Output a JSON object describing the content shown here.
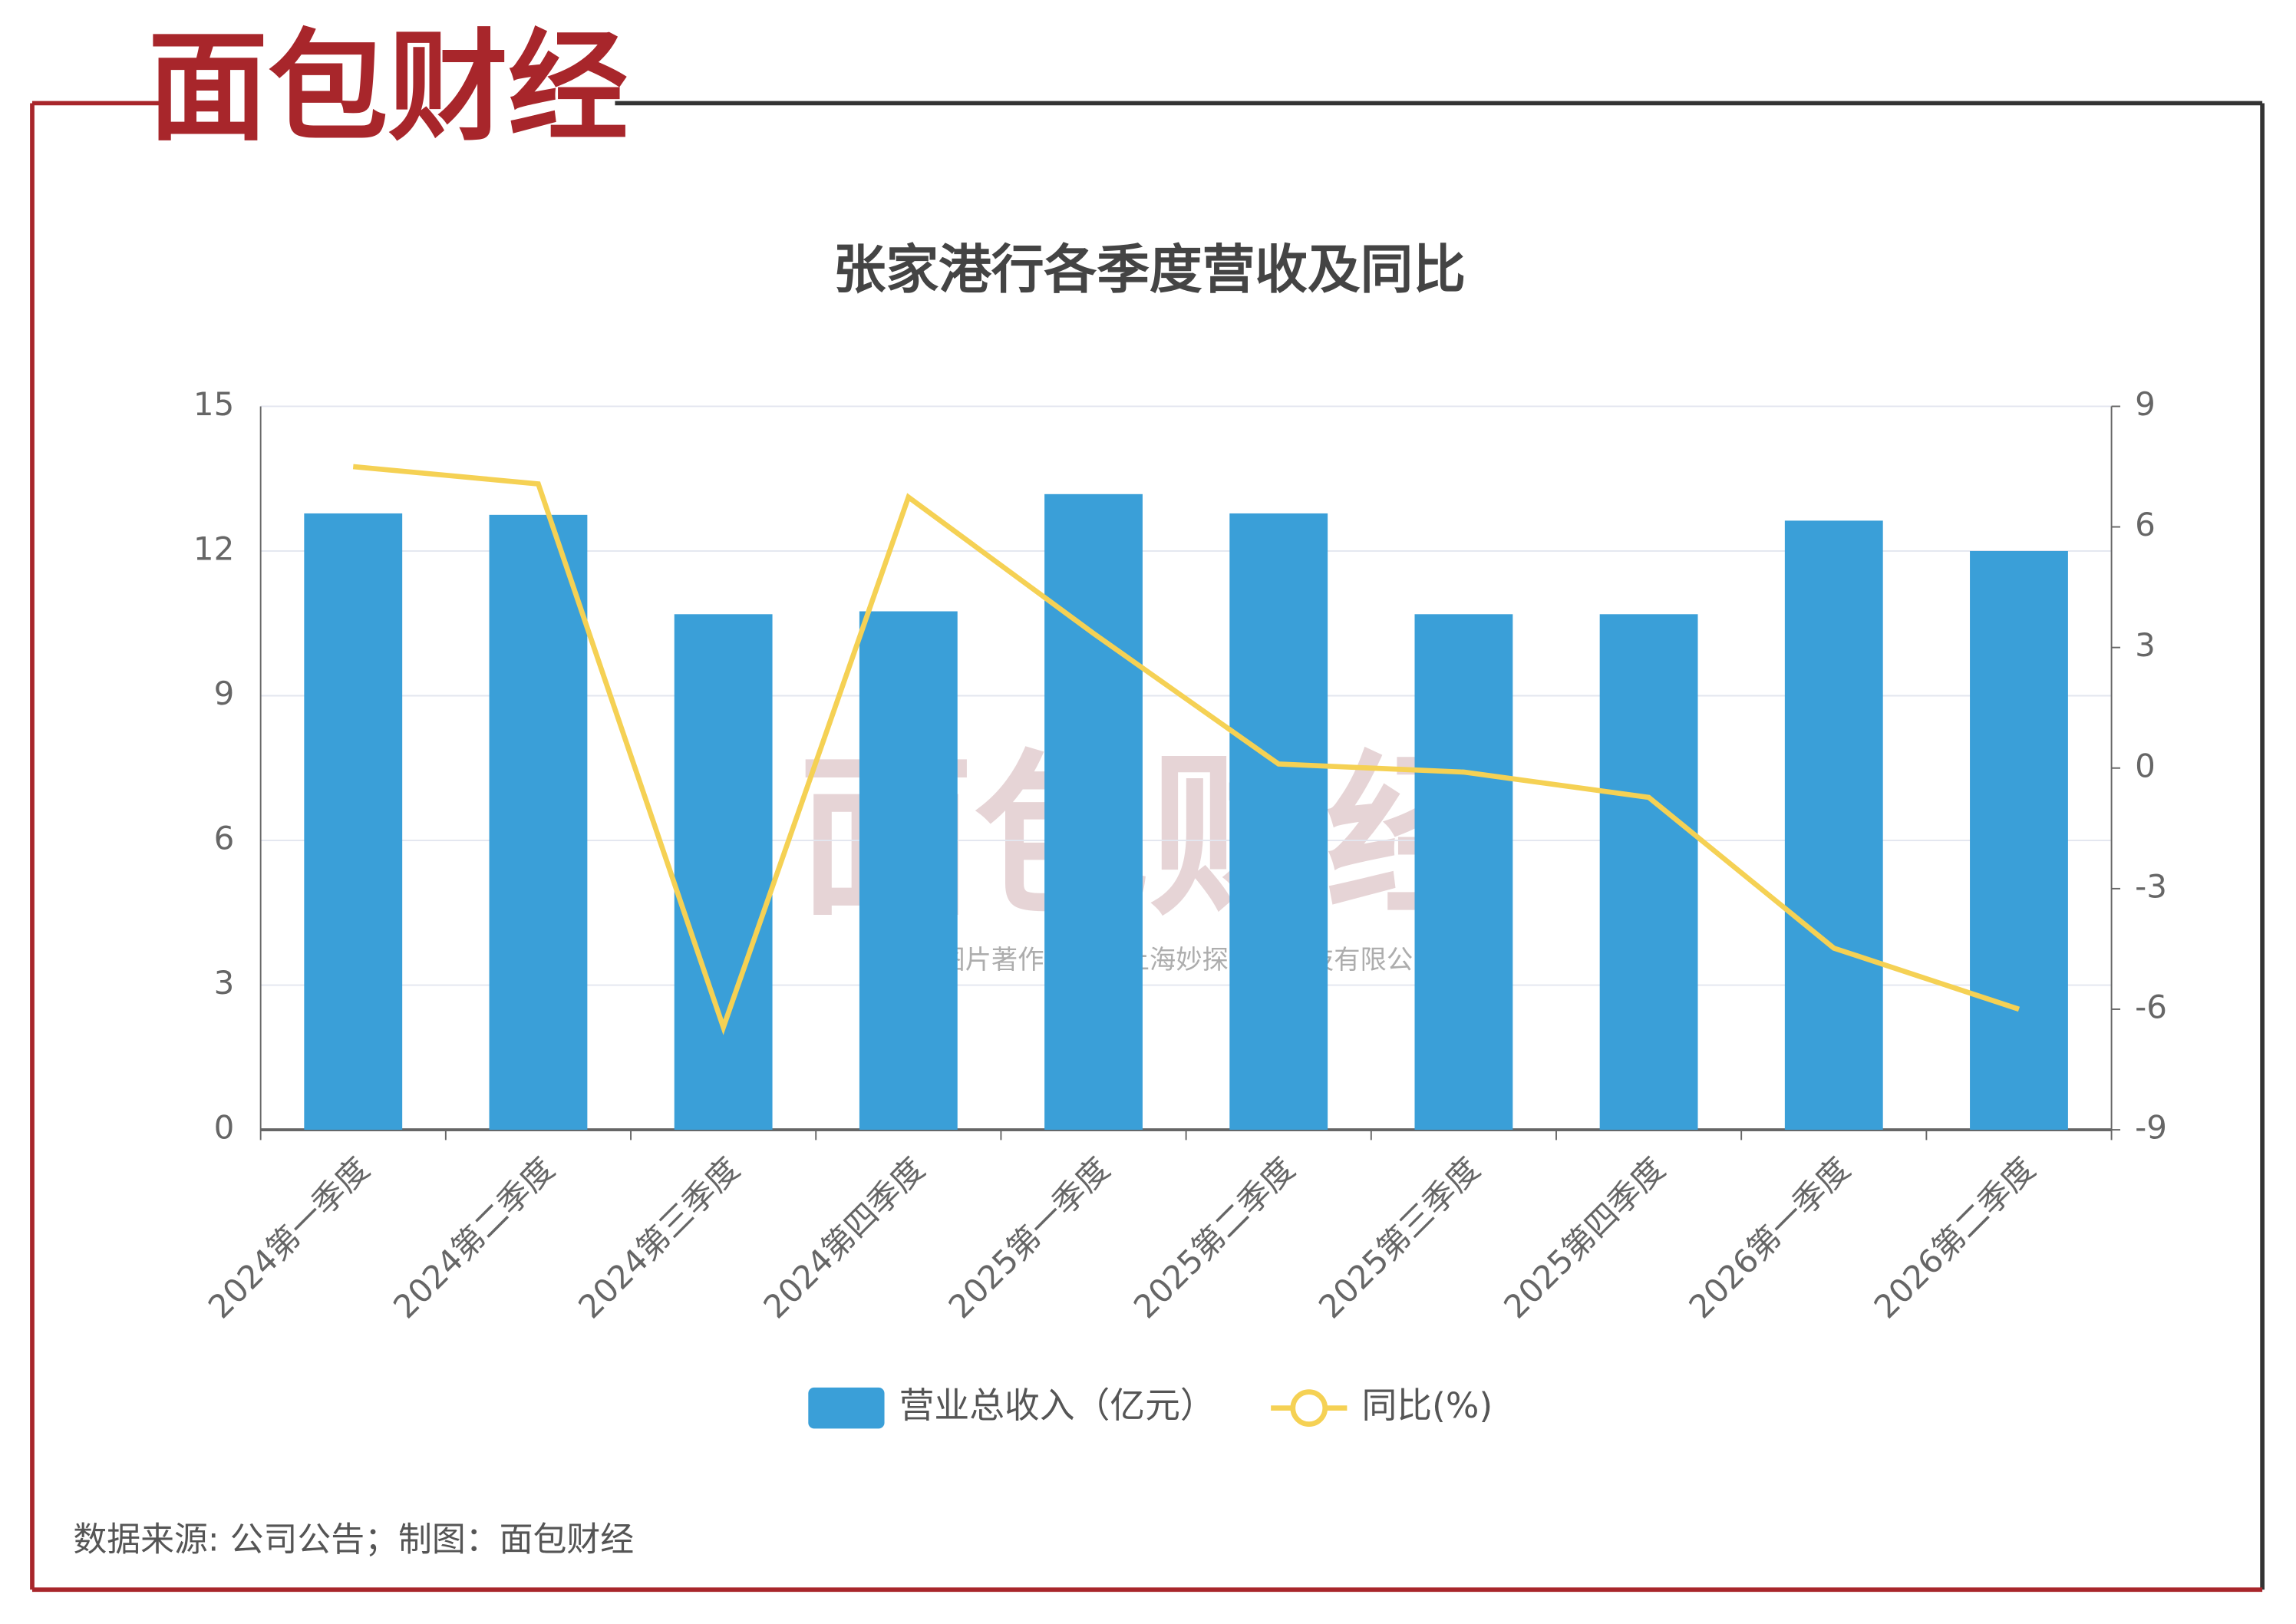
{
  "brand": "面包财经",
  "watermark": "本图表图片著作权属于上海妙探网络科技有限公司",
  "source": "数据来源: 公司公告；制图：面包财经",
  "chart_data": {
    "type": "bar",
    "title": "张家港行各季度营收及同比",
    "categories": [
      "2024第一季度",
      "2024第二季度",
      "2024第三季度",
      "2024第四季度",
      "2025第一季度",
      "2025第二季度",
      "2025第三季度",
      "2025第四季度",
      "2026第一季度",
      "2026第二季度"
    ],
    "series": [
      {
        "name": "营业总收入（亿元）",
        "type": "bar",
        "color": "#3a9fd8",
        "values": [
          12.78,
          12.75,
          10.69,
          10.75,
          13.18,
          12.78,
          10.69,
          10.69,
          12.63,
          12.0
        ]
      },
      {
        "name": "同比(%)",
        "type": "line",
        "axis": "y2",
        "color": "#f5d154",
        "values": [
          7.5,
          7.07,
          -6.45,
          6.74,
          3.35,
          0.1,
          -0.1,
          -0.73,
          -4.48,
          -6.0
        ]
      }
    ],
    "ylim": [
      0,
      15
    ],
    "yticks": [
      0,
      3,
      6,
      9,
      12,
      15
    ],
    "y2lim": [
      -9,
      9
    ],
    "y2ticks": [
      -9,
      -6,
      -3,
      0,
      3,
      6,
      9
    ],
    "grid": true
  }
}
